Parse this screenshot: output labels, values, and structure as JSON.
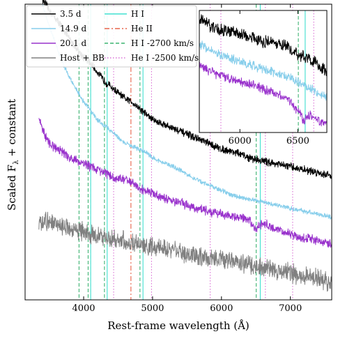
{
  "chart_data": {
    "type": "line",
    "xlabel": "Rest-frame wavelength (Å)",
    "ylabel": "Scaled F",
    "ylabel_sub": "λ",
    "ylabel_suffix": " + constant",
    "xlim": [
      3150,
      7600
    ],
    "ylim": [
      0,
      1
    ],
    "x_ticks": [
      4000,
      5000,
      6000,
      7000
    ],
    "series": [
      {
        "name": "3.5 d",
        "color": "#000000",
        "x": [
          3400,
          3500,
          3600,
          3700,
          3800,
          3900,
          4000,
          4100,
          4200,
          4300,
          4400,
          4500,
          4600,
          4700,
          4800,
          4900,
          5000,
          5200,
          5400,
          5600,
          5800,
          6000,
          6200,
          6400,
          6600,
          6800,
          7000,
          7200,
          7400,
          7600
        ],
        "y": [
          1.02,
          0.98,
          0.95,
          0.92,
          0.88,
          0.85,
          0.82,
          0.8,
          0.77,
          0.74,
          0.72,
          0.7,
          0.68,
          0.67,
          0.65,
          0.63,
          0.61,
          0.59,
          0.57,
          0.55,
          0.53,
          0.51,
          0.5,
          0.48,
          0.47,
          0.46,
          0.45,
          0.44,
          0.43,
          0.42
        ],
        "noise": 0.01
      },
      {
        "name": "14.9 d",
        "color": "#87CEEB",
        "x": [
          3400,
          3500,
          3600,
          3700,
          3800,
          3900,
          4000,
          4100,
          4200,
          4300,
          4400,
          4500,
          4600,
          4700,
          4800,
          4900,
          5000,
          5200,
          5400,
          5600,
          5800,
          6000,
          6200,
          6400,
          6600,
          6800,
          7000,
          7200,
          7400,
          7600
        ],
        "y": [
          1.0,
          0.93,
          0.86,
          0.8,
          0.75,
          0.71,
          0.67,
          0.64,
          0.61,
          0.59,
          0.57,
          0.55,
          0.53,
          0.52,
          0.51,
          0.5,
          0.48,
          0.46,
          0.44,
          0.41,
          0.39,
          0.37,
          0.35,
          0.34,
          0.33,
          0.32,
          0.31,
          0.3,
          0.29,
          0.28
        ],
        "noise": 0.006
      },
      {
        "name": "20.1 d",
        "color": "#9932CC",
        "x": [
          3350,
          3400,
          3450,
          3500,
          3600,
          3700,
          3800,
          3900,
          4000,
          4100,
          4200,
          4300,
          4400,
          4500,
          4600,
          4700,
          4800,
          4900,
          5000,
          5200,
          5400,
          5600,
          5800,
          6000,
          6200,
          6400,
          6500,
          6600,
          6800,
          7000,
          7200,
          7400,
          7600
        ],
        "y": [
          0.62,
          0.58,
          0.55,
          0.53,
          0.51,
          0.5,
          0.48,
          0.47,
          0.46,
          0.45,
          0.44,
          0.43,
          0.42,
          0.41,
          0.41,
          0.4,
          0.38,
          0.37,
          0.36,
          0.34,
          0.33,
          0.31,
          0.3,
          0.29,
          0.28,
          0.27,
          0.24,
          0.26,
          0.24,
          0.22,
          0.21,
          0.2,
          0.19
        ],
        "noise": 0.012
      },
      {
        "name": "Host + BB",
        "color": "#808080",
        "x": [
          3350,
          3400,
          3500,
          3600,
          3700,
          3800,
          3900,
          4000,
          4100,
          4200,
          4300,
          4400,
          4500,
          4600,
          4700,
          4800,
          4900,
          5000,
          5200,
          5400,
          5600,
          5800,
          6000,
          6200,
          6400,
          6600,
          6800,
          7000,
          7200,
          7400,
          7600
        ],
        "y": [
          0.26,
          0.27,
          0.26,
          0.25,
          0.25,
          0.24,
          0.24,
          0.23,
          0.22,
          0.22,
          0.21,
          0.21,
          0.2,
          0.2,
          0.19,
          0.19,
          0.18,
          0.18,
          0.17,
          0.16,
          0.15,
          0.14,
          0.14,
          0.13,
          0.12,
          0.11,
          0.1,
          0.09,
          0.08,
          0.07,
          0.06
        ],
        "noise": 0.025
      }
    ],
    "lines": [
      {
        "name": "H I",
        "color": "#40E0D0",
        "style": "solid",
        "x": [
          4102,
          4341,
          4861,
          6563
        ]
      },
      {
        "name": "He II",
        "color": "#E8634A",
        "style": "dashdot",
        "x": [
          4686
        ]
      },
      {
        "name": "H I -2700 km/s",
        "color": "#3CB371",
        "style": "dashed",
        "x": [
          3933,
          4065,
          4302,
          4817,
          6504
        ]
      },
      {
        "name": "He I -2500 km/s",
        "color": "#DA70D6",
        "style": "dotted",
        "x": [
          4435,
          4985,
          5836,
          6637,
          7033
        ]
      }
    ],
    "inset": {
      "xlim": [
        5650,
        6750
      ],
      "ylim": [
        0,
        1
      ],
      "x_ticks": [
        6000,
        6500
      ],
      "series": [
        {
          "name": "3.5 d",
          "color": "#000000",
          "x": [
            5650,
            5800,
            6000,
            6200,
            6400,
            6500,
            6600,
            6750
          ],
          "y": [
            0.93,
            0.85,
            0.8,
            0.75,
            0.7,
            0.64,
            0.6,
            0.5
          ],
          "noise": 0.04
        },
        {
          "name": "14.9 d",
          "color": "#87CEEB",
          "x": [
            5650,
            5800,
            6000,
            6200,
            6400,
            6500,
            6600,
            6750
          ],
          "y": [
            0.72,
            0.65,
            0.58,
            0.52,
            0.46,
            0.42,
            0.36,
            0.28
          ],
          "noise": 0.03
        },
        {
          "name": "20.1 d",
          "color": "#9932CC",
          "x": [
            5650,
            5800,
            6000,
            6200,
            6400,
            6500,
            6550,
            6600,
            6750
          ],
          "y": [
            0.55,
            0.48,
            0.42,
            0.36,
            0.28,
            0.18,
            0.1,
            0.15,
            0.05
          ],
          "noise": 0.03
        }
      ],
      "vlines": [
        {
          "color": "#DA70D6",
          "style": "dotted",
          "x": 5836
        },
        {
          "color": "#3CB371",
          "style": "dashed",
          "x": 6504
        },
        {
          "color": "#40E0D0",
          "style": "solid",
          "x": 6563
        },
        {
          "color": "#DA70D6",
          "style": "dotted",
          "x": 6637
        }
      ]
    }
  }
}
